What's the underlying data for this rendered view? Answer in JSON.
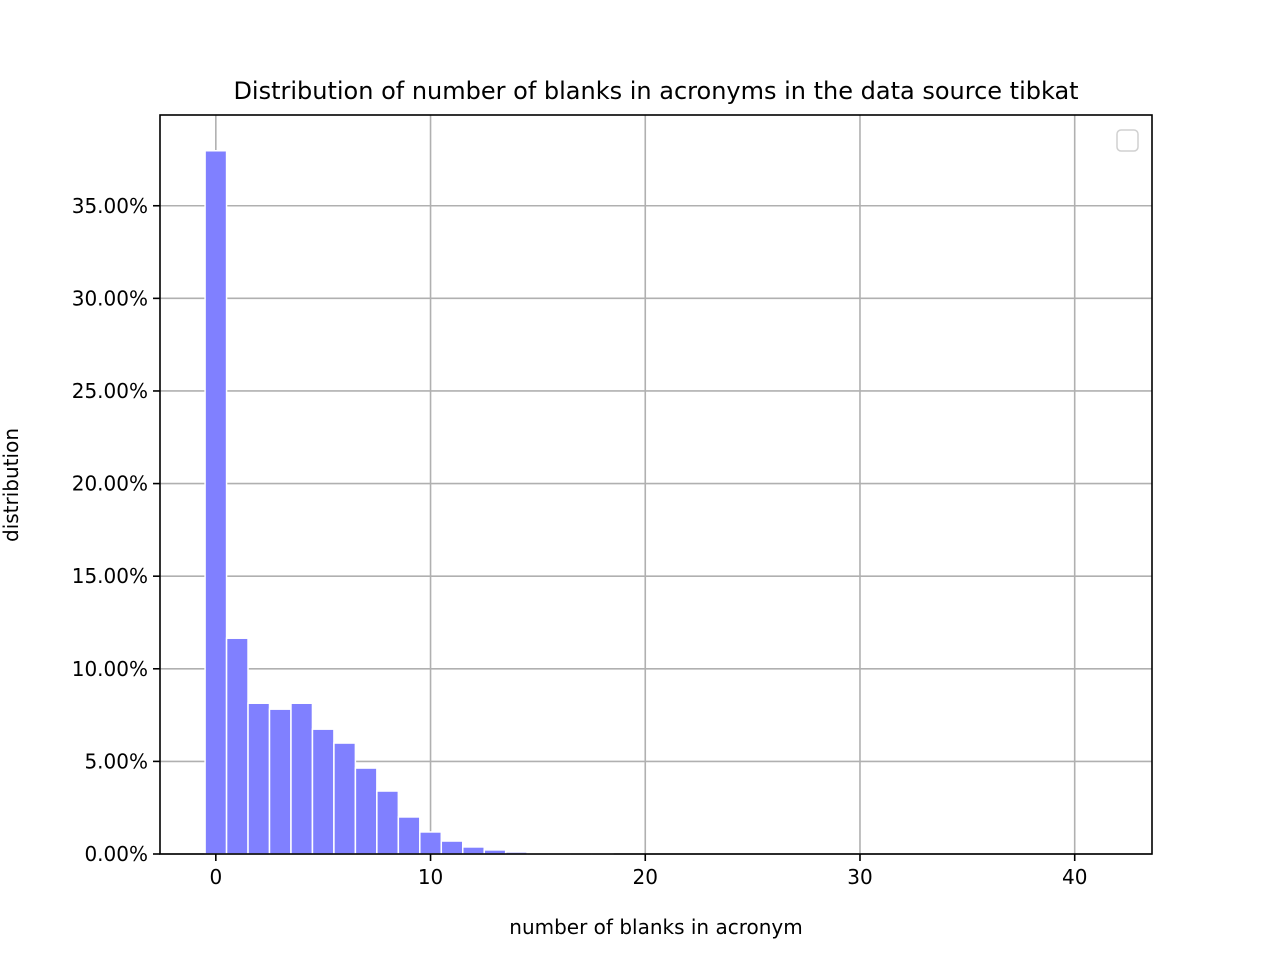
{
  "chart_data": {
    "type": "bar",
    "title": "Distribution of number of blanks in acronyms in the data source tibkat",
    "xlabel": "number of blanks in acronym",
    "ylabel": "distribution",
    "x": [
      0,
      1,
      2,
      3,
      4,
      5,
      6,
      7,
      8,
      9,
      10,
      11,
      12,
      13,
      14,
      15,
      16,
      17,
      18,
      19,
      20,
      21,
      22,
      23,
      24,
      25,
      26,
      27,
      28,
      29,
      30,
      31,
      32,
      33,
      34,
      35,
      36,
      37,
      38,
      39,
      40,
      41
    ],
    "values": [
      37.97,
      11.65,
      8.14,
      7.82,
      8.14,
      6.74,
      5.99,
      4.64,
      3.4,
      2.0,
      1.19,
      0.7,
      0.38,
      0.22,
      0.11,
      0.05,
      0.02,
      0.01,
      0.01,
      0,
      0,
      0,
      0,
      0,
      0,
      0,
      0,
      0,
      0,
      0,
      0,
      0,
      0,
      0,
      0,
      0,
      0,
      0,
      0,
      0,
      0,
      0
    ],
    "value_unit": "percent",
    "xlim": [
      -2.6,
      43.6
    ],
    "ylim": [
      0,
      39.9
    ],
    "xticks": [
      0,
      10,
      20,
      30,
      40
    ],
    "xtick_labels": [
      "0",
      "10",
      "20",
      "30",
      "40"
    ],
    "yticks": [
      0,
      5,
      10,
      15,
      20,
      25,
      30,
      35
    ],
    "ytick_labels": [
      "0.00%",
      "5.00%",
      "10.00%",
      "15.00%",
      "20.00%",
      "25.00%",
      "30.00%",
      "35.00%"
    ],
    "grid": true,
    "legend": {
      "placement": "upper-right",
      "entries": []
    },
    "bar_color": "#8080ff",
    "bar_edge_color": "#ffffff",
    "grid_color": "#b0b0b0"
  }
}
